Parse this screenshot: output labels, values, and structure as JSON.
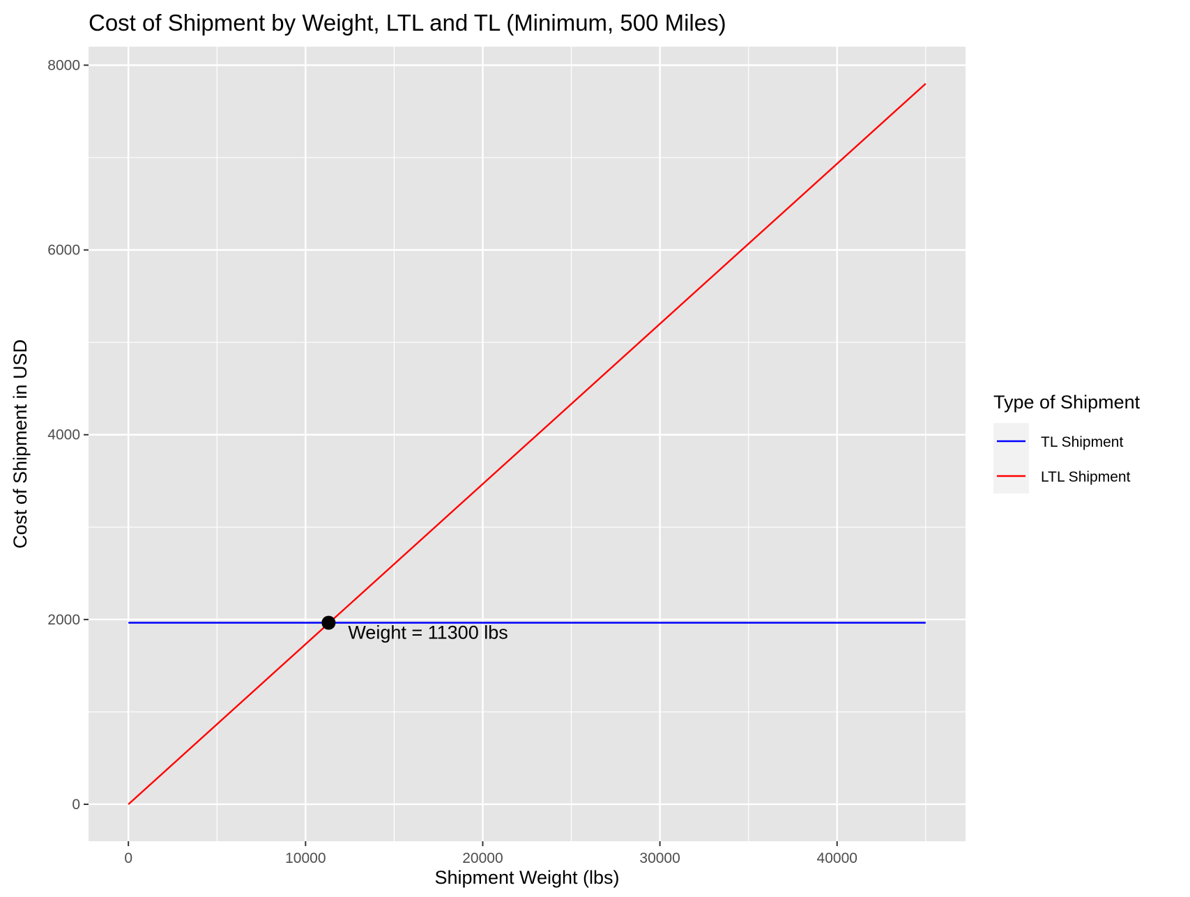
{
  "chart_data": {
    "type": "line",
    "title": "Cost of Shipment by Weight, LTL and TL (Minimum, 500 Miles)",
    "xlabel": "Shipment Weight (lbs)",
    "ylabel": "Cost of Shipment in USD",
    "xlim": [
      -2250,
      47250
    ],
    "ylim": [
      -400,
      8200
    ],
    "x_ticks": [
      0,
      10000,
      20000,
      30000,
      40000
    ],
    "x_tick_labels": [
      "0",
      "10000",
      "20000",
      "30000",
      "40000"
    ],
    "x_minor_ticks": [
      5000,
      15000,
      25000,
      35000,
      45000
    ],
    "y_ticks": [
      0,
      2000,
      4000,
      6000,
      8000
    ],
    "y_tick_labels": [
      "0",
      "2000",
      "4000",
      "6000",
      "8000"
    ],
    "y_minor_ticks": [
      1000,
      3000,
      5000,
      7000
    ],
    "grid": true,
    "legend": {
      "title": "Type of Shipment",
      "placement": "right"
    },
    "series": [
      {
        "name": "TL Shipment",
        "color": "#0000ff",
        "x": [
          0,
          45000
        ],
        "y": [
          1965,
          1965
        ]
      },
      {
        "name": "LTL Shipment",
        "color": "#ff0000",
        "x": [
          0,
          45000
        ],
        "y": [
          0,
          7800
        ]
      }
    ],
    "point": {
      "x": 11300,
      "y": 1965
    },
    "annotation": {
      "text": "Weight =  11300 lbs",
      "x": 12400,
      "y": 1790
    }
  },
  "colors": {
    "panel_background": "#e5e5e5",
    "grid_line": "#ffffff",
    "tick_text": "#4d4d4d",
    "tick_mark": "#333333",
    "legend_key_background": "#f2f2f2"
  }
}
